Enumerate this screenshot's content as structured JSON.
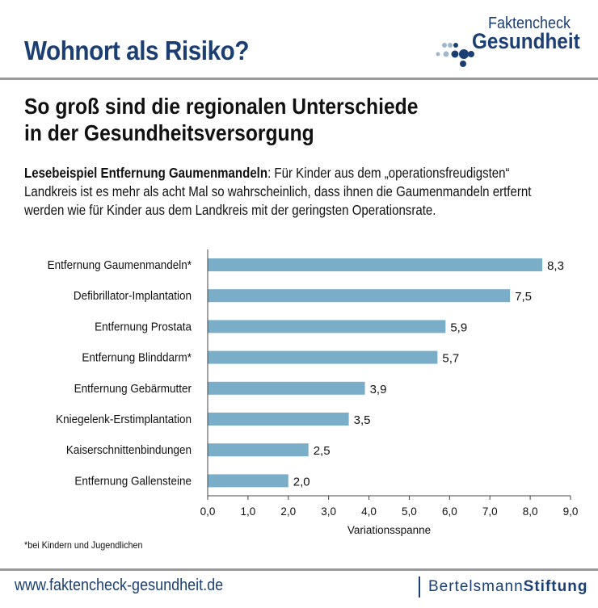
{
  "header": {
    "title": "Wohnort als Risiko?",
    "logo_line1": "Faktencheck",
    "logo_line2": "Gesundheit"
  },
  "subtitle": {
    "line1": "So groß sind die regionalen Unterschiede",
    "line2": "in der Gesundheitsversorgung"
  },
  "reading_example": {
    "label": "Lesebeispiel Entfernung Gaumenmandeln",
    "text": ": Für Kinder aus dem „operationsfreudigsten“ Landkreis ist es mehr als acht Mal so wahrscheinlich, dass ihnen die Gaumenmandeln ertfernt werden wie für Kinder aus dem Landkreis mit der geringsten Operationsrate."
  },
  "chart_data": {
    "type": "bar",
    "orientation": "horizontal",
    "categories": [
      "Entfernung Gaumenmandeln*",
      "Defibrillator-Implantation",
      "Entfernung Prostata",
      "Entfernung Blinddarm*",
      "Entfernung Gebärmutter",
      "Kniegelenk-Erstimplantation",
      "Kaiserschnittenbindungen",
      "Entfernung Gallensteine"
    ],
    "values": [
      8.3,
      7.5,
      5.9,
      5.7,
      3.9,
      3.5,
      2.5,
      2.0
    ],
    "data_labels": [
      "8,3",
      "7,5",
      "5,9",
      "5,7",
      "3,9",
      "3,5",
      "2,5",
      "2,0"
    ],
    "xlabel": "Variationsspanne",
    "xlim": [
      0,
      9
    ],
    "x_ticks": [
      "0,0",
      "1,0",
      "2,0",
      "3,0",
      "4,0",
      "5,0",
      "6,0",
      "7,0",
      "8,0",
      "9,0"
    ],
    "grid": false,
    "bar_color": "#7aadc8"
  },
  "footnote": "*bei Kindern und Jugendlichen",
  "footer": {
    "url": "www.faktencheck-gesundheit.de",
    "brand_light": "Bertelsmann",
    "brand_bold": "Stiftung"
  },
  "colors": {
    "brand": "#1b3f73",
    "bar": "#7aadc8"
  }
}
